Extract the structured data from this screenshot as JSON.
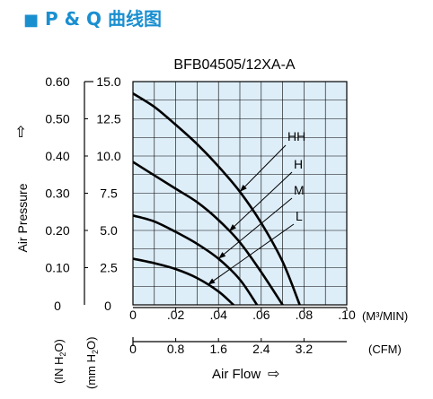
{
  "header": {
    "square": "■",
    "title": "P & Q 曲线图"
  },
  "chart_data": {
    "type": "line",
    "title": "BFB04505/12XA-A",
    "ylabel": "Air Pressure",
    "ylabel_arrow": "⇧",
    "xlabel": "Air Flow",
    "xlabel_arrow": "⇨",
    "x_unit_top": "(M³/MIN)",
    "x_unit_bottom": "(CFM)",
    "y_unit_left_1": "(IN H",
    "y_unit_left_2": "O)",
    "y_unit_right_1": "(mm H",
    "y_unit_right_2": "O)",
    "y_unit_sub": "2",
    "xlim": [
      0,
      0.1
    ],
    "ylim_mmH2O": [
      0,
      15
    ],
    "x_ticks": [
      ".02",
      ".04",
      ".06",
      ".08",
      ".10"
    ],
    "x_cfm_ticks": [
      "0.8",
      "1.6",
      "2.4",
      "3.2"
    ],
    "y_ticks_inH2O": [
      "0.10",
      "0.20",
      "0.30",
      "0.40",
      "0.50",
      "0.60"
    ],
    "y_ticks_mmH2O": [
      "2.5",
      "5.0",
      "7.5",
      "10.0",
      "12.5",
      "15.0"
    ],
    "zero_labels": {
      "x_metric": "0",
      "x_cfm": "0",
      "y_in": "0",
      "y_mm": "0"
    },
    "grid": true,
    "background": "#deeef9",
    "series": [
      {
        "name": "HH",
        "x": [
          0,
          0.01,
          0.02,
          0.03,
          0.04,
          0.05,
          0.06,
          0.07,
          0.078
        ],
        "values": [
          14.2,
          13.3,
          12.1,
          10.8,
          9.3,
          7.6,
          5.5,
          2.9,
          0
        ]
      },
      {
        "name": "H",
        "x": [
          0,
          0.01,
          0.02,
          0.03,
          0.04,
          0.05,
          0.06,
          0.07
        ],
        "values": [
          9.6,
          8.7,
          7.8,
          6.9,
          5.7,
          4.2,
          2.2,
          0
        ]
      },
      {
        "name": "M",
        "x": [
          0,
          0.01,
          0.02,
          0.03,
          0.04,
          0.05,
          0.058
        ],
        "values": [
          6.0,
          5.6,
          4.9,
          4.1,
          3.1,
          1.7,
          0
        ]
      },
      {
        "name": "L",
        "x": [
          0,
          0.01,
          0.02,
          0.03,
          0.04,
          0.047
        ],
        "values": [
          3.1,
          2.8,
          2.4,
          1.8,
          0.9,
          0
        ]
      }
    ]
  }
}
